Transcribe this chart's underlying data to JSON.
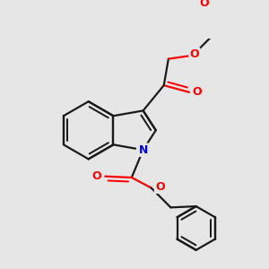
{
  "background_color": "#e6e6e6",
  "line_color": "#1a1a1a",
  "oxygen_color": "#ff0000",
  "nitrogen_color": "#0000cc",
  "bond_lw": 1.6,
  "figsize": [
    3.0,
    3.0
  ],
  "dpi": 100,
  "xlim": [
    0,
    10
  ],
  "ylim": [
    0,
    10
  ]
}
